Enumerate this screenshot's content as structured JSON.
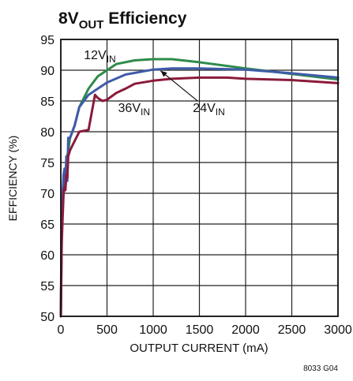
{
  "chart_data": {
    "type": "line",
    "title": {
      "main": "8V",
      "sub": "OUT",
      "rest": " Efficiency"
    },
    "xlabel": "OUTPUT CURRENT (mA)",
    "ylabel": "EFFICIENCY (%)",
    "xlim": [
      0,
      3000
    ],
    "ylim": [
      50,
      95
    ],
    "xticks": [
      0,
      500,
      1000,
      1500,
      2000,
      2500,
      3000
    ],
    "yticks": [
      50,
      55,
      60,
      65,
      70,
      75,
      80,
      85,
      90,
      95
    ],
    "grid": true,
    "series": [
      {
        "name": "12V_IN",
        "label_main": "12V",
        "label_sub": "IN",
        "color": "#2e8b4a",
        "x": [
          0,
          10,
          20,
          40,
          60,
          80,
          100,
          150,
          200,
          300,
          400,
          500,
          600,
          800,
          1000,
          1200,
          1500,
          2000,
          2500,
          3000
        ],
        "y": [
          50,
          63,
          68,
          72,
          75,
          77,
          79,
          81,
          84,
          87,
          89,
          90,
          91,
          91.6,
          91.8,
          91.8,
          91.3,
          90.3,
          89.4,
          88.5
        ]
      },
      {
        "name": "24V_IN",
        "label_main": "24V",
        "label_sub": "IN",
        "color": "#3f5ba9",
        "x": [
          0,
          10,
          20,
          30,
          40,
          50,
          60,
          70,
          80,
          100,
          150,
          200,
          300,
          400,
          500,
          700,
          1000,
          1200,
          1500,
          2000,
          2500,
          3000
        ],
        "y": [
          50,
          66,
          70,
          73,
          74,
          71,
          76,
          72,
          79,
          79,
          81,
          84,
          86,
          87,
          88,
          89.3,
          90.1,
          90.3,
          90.3,
          90.1,
          89.5,
          88.8
        ]
      },
      {
        "name": "36V_IN",
        "label_main": "36V",
        "label_sub": "IN",
        "color": "#8b1a3a",
        "x": [
          0,
          10,
          20,
          30,
          40,
          50,
          60,
          70,
          80,
          100,
          200,
          300,
          370,
          400,
          450,
          500,
          600,
          700,
          800,
          1000,
          1200,
          1500,
          1800,
          2000,
          2500,
          3000
        ],
        "y": [
          50,
          62,
          66,
          70,
          71,
          70.5,
          73,
          72.5,
          76,
          77,
          80,
          80.3,
          86,
          85.5,
          85,
          85.2,
          86.3,
          87,
          87.8,
          88.3,
          88.6,
          88.8,
          88.8,
          88.6,
          88.4,
          87.9
        ]
      }
    ],
    "annotations": [
      {
        "series": "12V_IN",
        "text_main": "12V",
        "text_sub": "IN",
        "at": [
          250,
          91.8
        ]
      },
      {
        "series": "36V_IN",
        "text_main": "36V",
        "text_sub": "IN",
        "at": [
          620,
          83.2
        ]
      },
      {
        "series": "24V_IN",
        "text_main": "24V",
        "text_sub": "IN",
        "at": [
          1430,
          83.2
        ],
        "arrow_to": [
          1080,
          89.9
        ]
      }
    ],
    "figure_id": "8033 G04"
  }
}
